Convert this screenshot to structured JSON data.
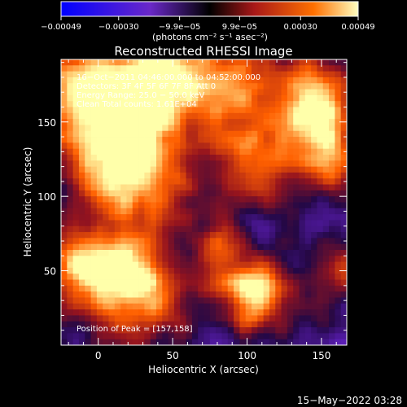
{
  "colorbar": {
    "tick_labels": [
      "−0.00049",
      "−0.00030",
      "−9.9e−05",
      "9.9e−05",
      "0.00030",
      "0.00049"
    ],
    "tick_values": [
      -0.00049,
      -0.0003,
      -9.9e-05,
      9.9e-05,
      0.0003,
      0.00049
    ],
    "range": [
      -0.00049,
      0.00049
    ],
    "unit_label": "(photons cm⁻² s⁻¹ asec⁻²)"
  },
  "chart_data": {
    "type": "heatmap",
    "title": "Reconstructed RHESSI Image",
    "xlabel": "Heliocentric X (arcsec)",
    "ylabel": "Heliocentric Y (arcsec)",
    "xlim": [
      -25,
      167
    ],
    "ylim": [
      0,
      192
    ],
    "x_ticks": [
      0,
      50,
      100,
      150
    ],
    "y_ticks": [
      50,
      100,
      150
    ],
    "annotations": [
      "16−Oct−2011 04:46:00.000 to 04:52:00.000",
      "Detectors: 3F 4F 5F 6F 7F 8F Att 0",
      "Energy Range: 25.0 − 50.0 keV",
      "Clean    Total counts: 1.61E+04"
    ],
    "peak_label": "Position of Peak = [157,158]",
    "peak": [
      157,
      158
    ],
    "grid": false,
    "colormap": [
      "#0000ff",
      "#6020c0",
      "#000000",
      "#a01020",
      "#ff6000",
      "#ffff90"
    ]
  },
  "timestamp": "15−May−2022 03:28"
}
